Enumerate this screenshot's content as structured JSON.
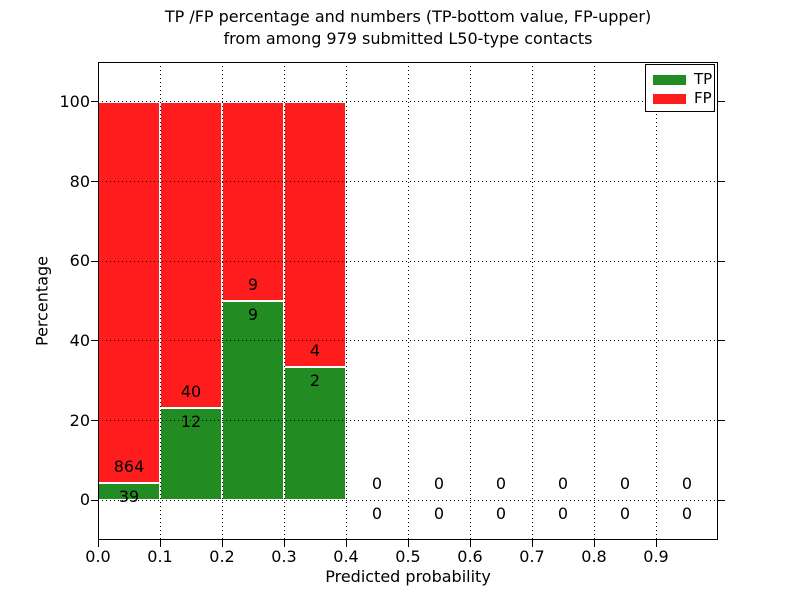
{
  "figure": {
    "title_line1": "TP /FP percentage and numbers (TP-bottom value, FP-upper)",
    "title_line2": "from among 979 submitted L50-type contacts"
  },
  "chart_data": {
    "type": "bar",
    "stacked": true,
    "title": "TP /FP percentage and numbers (TP-bottom value, FP-upper) from among 979 submitted L50-type contacts",
    "xlabel": "Predicted probability",
    "ylabel": "Percentage",
    "xlim": [
      0.0,
      1.0
    ],
    "ylim": [
      -10,
      110
    ],
    "x_tick_labels": [
      "0.0",
      "0.1",
      "0.2",
      "0.3",
      "0.4",
      "0.5",
      "0.6",
      "0.7",
      "0.8",
      "0.9"
    ],
    "y_tick_values": [
      0,
      20,
      40,
      60,
      80,
      100
    ],
    "grid": {
      "visible": true,
      "style": "dotted",
      "color": "#000000",
      "above_bars": true
    },
    "total_contacts": 979,
    "bin_width": 0.1,
    "bin_starts": [
      0.0,
      0.1,
      0.2,
      0.3,
      0.4,
      0.5,
      0.6,
      0.7,
      0.8,
      0.9
    ],
    "legend_position": "upper right",
    "bar_edge_color": "#ffffff",
    "series": [
      {
        "name": "TP",
        "color": "#228b22",
        "counts": [
          39,
          12,
          9,
          2,
          0,
          0,
          0,
          0,
          0,
          0
        ],
        "pct": [
          4.32,
          23.08,
          50.0,
          33.33,
          0,
          0,
          0,
          0,
          0,
          0
        ]
      },
      {
        "name": "FP",
        "color": "#ff1c1c",
        "counts": [
          864,
          40,
          9,
          4,
          0,
          0,
          0,
          0,
          0,
          0
        ],
        "pct": [
          95.68,
          76.92,
          50.0,
          66.67,
          0,
          0,
          0,
          0,
          0,
          0
        ]
      }
    ]
  }
}
